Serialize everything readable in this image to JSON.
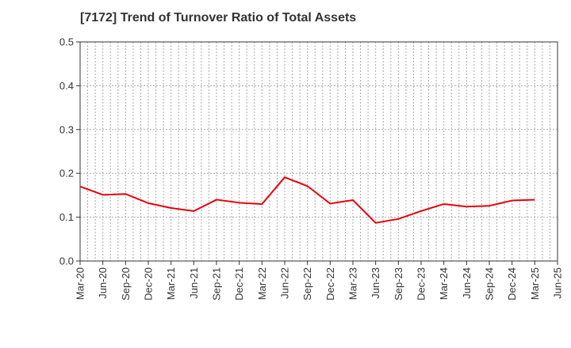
{
  "chart_data": {
    "type": "line",
    "title": "[7172]  Trend of Turnover Ratio of Total Assets",
    "xlabel": "",
    "ylabel": "",
    "ylim": [
      0.0,
      0.5
    ],
    "yticks": [
      "0.0",
      "0.1",
      "0.2",
      "0.3",
      "0.4",
      "0.5"
    ],
    "grid": true,
    "legend": "none",
    "colors": {
      "line": "#e8000b",
      "grid": "#aaaaaa",
      "axis": "#333333"
    },
    "x_tick_labels": [
      "Mar-20",
      "Jun-20",
      "Sep-20",
      "Dec-20",
      "Mar-21",
      "Jun-21",
      "Sep-21",
      "Dec-21",
      "Mar-22",
      "Jun-22",
      "Sep-22",
      "Dec-22",
      "Mar-23",
      "Jun-23",
      "Sep-23",
      "Dec-23",
      "Mar-24",
      "Jun-24",
      "Sep-24",
      "Dec-24",
      "Mar-25",
      "Jun-25"
    ],
    "categories": [
      "Mar-20",
      "Jun-20",
      "Sep-20",
      "Dec-20",
      "Mar-21",
      "Jun-21",
      "Sep-21",
      "Dec-21",
      "Mar-22",
      "Jun-22",
      "Sep-22",
      "Dec-22",
      "Mar-23",
      "Jun-23",
      "Sep-23",
      "Dec-23",
      "Mar-24",
      "Jun-24",
      "Sep-24",
      "Dec-24",
      "Mar-25"
    ],
    "series": [
      {
        "values": [
          0.17,
          0.151,
          0.153,
          0.132,
          0.121,
          0.114,
          0.14,
          0.133,
          0.13,
          0.191,
          0.171,
          0.131,
          0.139,
          0.087,
          0.096,
          0.114,
          0.13,
          0.124,
          0.126,
          0.138,
          0.14
        ]
      }
    ]
  }
}
